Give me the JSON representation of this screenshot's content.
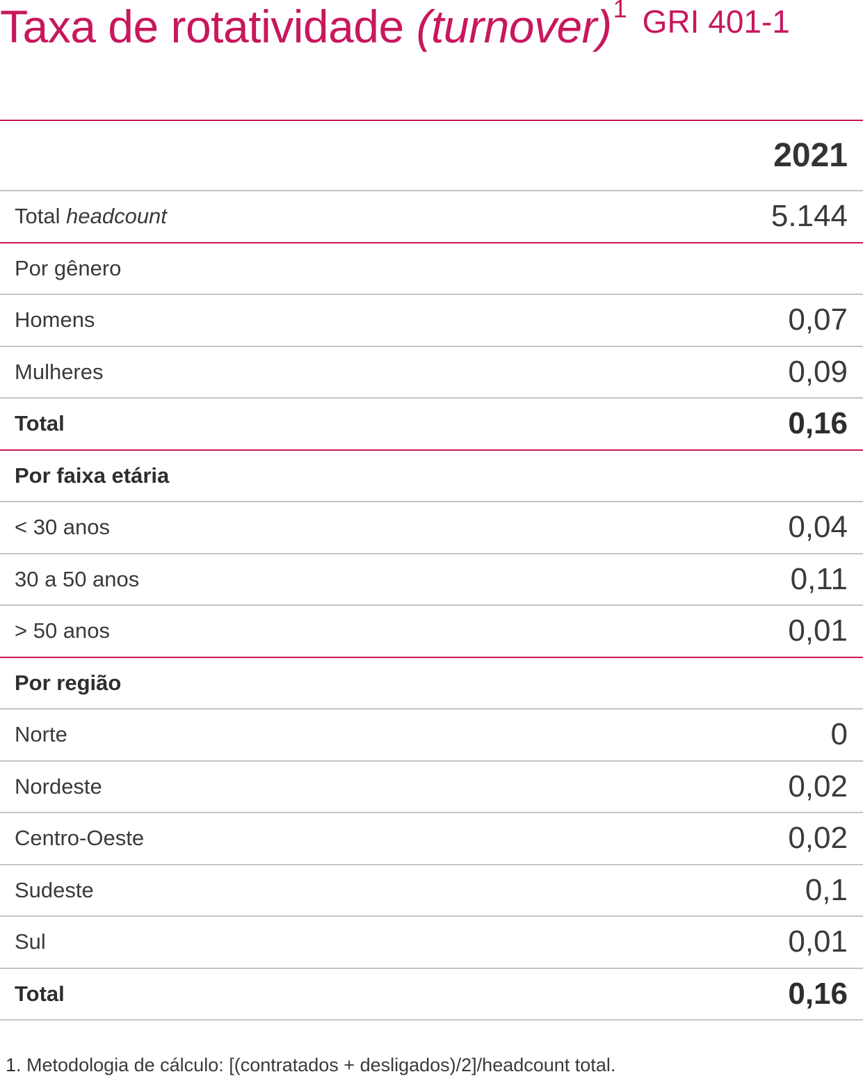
{
  "title": {
    "main": "Taxa de rotatividade ",
    "italic": "(turnover)",
    "sup": "1",
    "gri": "GRI 401-1"
  },
  "table": {
    "year_header": "2021",
    "headcount": {
      "label_plain": "Total ",
      "label_italic": "headcount",
      "value": "5.144"
    },
    "gender": {
      "heading": "Por gênero",
      "rows": [
        {
          "label": "Homens",
          "value": "0,07"
        },
        {
          "label": "Mulheres",
          "value": "0,09"
        }
      ],
      "total": {
        "label": "Total",
        "value": "0,16"
      }
    },
    "age": {
      "heading": "Por faixa etária",
      "rows": [
        {
          "label": "< 30 anos",
          "value": "0,04"
        },
        {
          "label": "30 a 50 anos",
          "value": "0,11"
        },
        {
          "label": "> 50 anos",
          "value": "0,01"
        }
      ]
    },
    "region": {
      "heading": "Por região",
      "rows": [
        {
          "label": "Norte",
          "value": "0"
        },
        {
          "label": "Nordeste",
          "value": "0,02"
        },
        {
          "label": "Centro-Oeste",
          "value": "0,02"
        },
        {
          "label": "Sudeste",
          "value": "0,1"
        },
        {
          "label": "Sul",
          "value": "0,01"
        }
      ],
      "total": {
        "label": "Total",
        "value": "0,16"
      }
    }
  },
  "footnote": {
    "num": "1.",
    "text": " Metodologia de cálculo: [(contratados + desligados)/2]/headcount total."
  },
  "colors": {
    "accent": "#c8175d",
    "divider": "#c4c4c4",
    "text": "#3a3a3a"
  }
}
